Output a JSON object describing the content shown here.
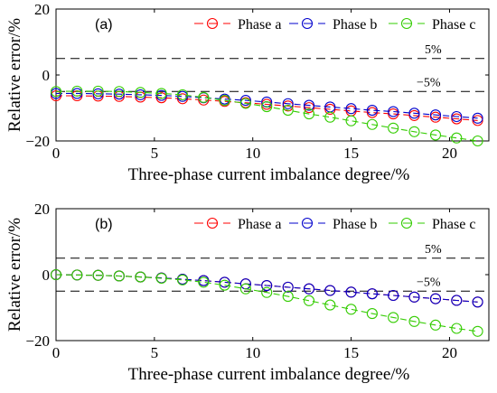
{
  "chart_data": [
    {
      "type": "line",
      "panel_label": "(a)",
      "xlabel": "Three-phase current imbalance degree/%",
      "ylabel": "Relative error/%",
      "xlim": [
        0,
        22
      ],
      "ylim": [
        -20,
        20
      ],
      "xticks": [
        "0",
        "5",
        "10",
        "15",
        "20"
      ],
      "yticks": [
        "−20",
        "0",
        "20"
      ],
      "grid": false,
      "legend": "top-right",
      "x": [
        0,
        1.07,
        2.14,
        3.21,
        4.29,
        5.36,
        6.43,
        7.5,
        8.57,
        9.64,
        10.71,
        11.79,
        12.86,
        13.93,
        15.0,
        16.07,
        17.14,
        18.21,
        19.29,
        20.36,
        21.43
      ],
      "series": [
        {
          "name": "Phase a",
          "color": "#ff0000",
          "values": [
            -6.3,
            -6.3,
            -6.4,
            -6.5,
            -6.7,
            -6.9,
            -7.2,
            -7.6,
            -8.0,
            -8.4,
            -8.9,
            -9.4,
            -9.9,
            -10.4,
            -10.9,
            -11.4,
            -11.8,
            -12.3,
            -12.8,
            -13.3,
            -13.8
          ]
        },
        {
          "name": "Phase b",
          "color": "#0000cc",
          "values": [
            -5.6,
            -5.6,
            -5.7,
            -5.8,
            -6.0,
            -6.2,
            -6.5,
            -6.9,
            -7.3,
            -7.7,
            -8.2,
            -8.7,
            -9.2,
            -9.7,
            -10.2,
            -10.7,
            -11.1,
            -11.6,
            -12.1,
            -12.6,
            -13.1
          ]
        },
        {
          "name": "Phase c",
          "color": "#33cc00",
          "values": [
            -5.0,
            -4.9,
            -4.9,
            -5.0,
            -5.3,
            -5.6,
            -6.0,
            -6.8,
            -7.7,
            -8.6,
            -9.6,
            -10.7,
            -11.8,
            -12.8,
            -13.9,
            -15.0,
            -16.1,
            -17.2,
            -18.2,
            -19.1,
            -20.0
          ]
        }
      ],
      "reference_lines": [
        {
          "y": 5,
          "label": "5%"
        },
        {
          "y": -5,
          "label": "−5%"
        }
      ]
    },
    {
      "type": "line",
      "panel_label": "(b)",
      "xlabel": "Three-phase current imbalance degree/%",
      "ylabel": "Relative error/%",
      "xlim": [
        0,
        22
      ],
      "ylim": [
        -20,
        20
      ],
      "xticks": [
        "0",
        "5",
        "10",
        "15",
        "20"
      ],
      "yticks": [
        "−20",
        "0",
        "20"
      ],
      "grid": false,
      "legend": "top-right",
      "x": [
        0,
        1.07,
        2.14,
        3.21,
        4.29,
        5.36,
        6.43,
        7.5,
        8.57,
        9.64,
        10.71,
        11.79,
        12.86,
        13.93,
        15.0,
        16.07,
        17.14,
        18.21,
        19.29,
        20.36,
        21.43
      ],
      "series": [
        {
          "name": "Phase a",
          "color": "#ff0000",
          "values": [
            0.0,
            -0.1,
            -0.2,
            -0.4,
            -0.7,
            -1.0,
            -1.4,
            -1.8,
            -2.3,
            -2.8,
            -3.3,
            -3.8,
            -4.3,
            -4.8,
            -5.3,
            -5.8,
            -6.3,
            -6.8,
            -7.3,
            -7.8,
            -8.3
          ]
        },
        {
          "name": "Phase b",
          "color": "#0000cc",
          "values": [
            0.0,
            -0.1,
            -0.2,
            -0.4,
            -0.7,
            -1.0,
            -1.4,
            -1.8,
            -2.3,
            -2.8,
            -3.3,
            -3.8,
            -4.3,
            -4.8,
            -5.3,
            -5.8,
            -6.3,
            -6.8,
            -7.3,
            -7.8,
            -8.3
          ]
        },
        {
          "name": "Phase c",
          "color": "#33cc00",
          "values": [
            0.0,
            -0.1,
            -0.2,
            -0.4,
            -0.7,
            -1.1,
            -1.6,
            -2.3,
            -3.2,
            -4.3,
            -5.4,
            -6.6,
            -7.9,
            -9.2,
            -10.5,
            -11.8,
            -13.0,
            -14.2,
            -15.3,
            -16.3,
            -17.2
          ]
        }
      ],
      "reference_lines": [
        {
          "y": 5,
          "label": "5%"
        },
        {
          "y": -5,
          "label": "−5%"
        }
      ]
    }
  ]
}
